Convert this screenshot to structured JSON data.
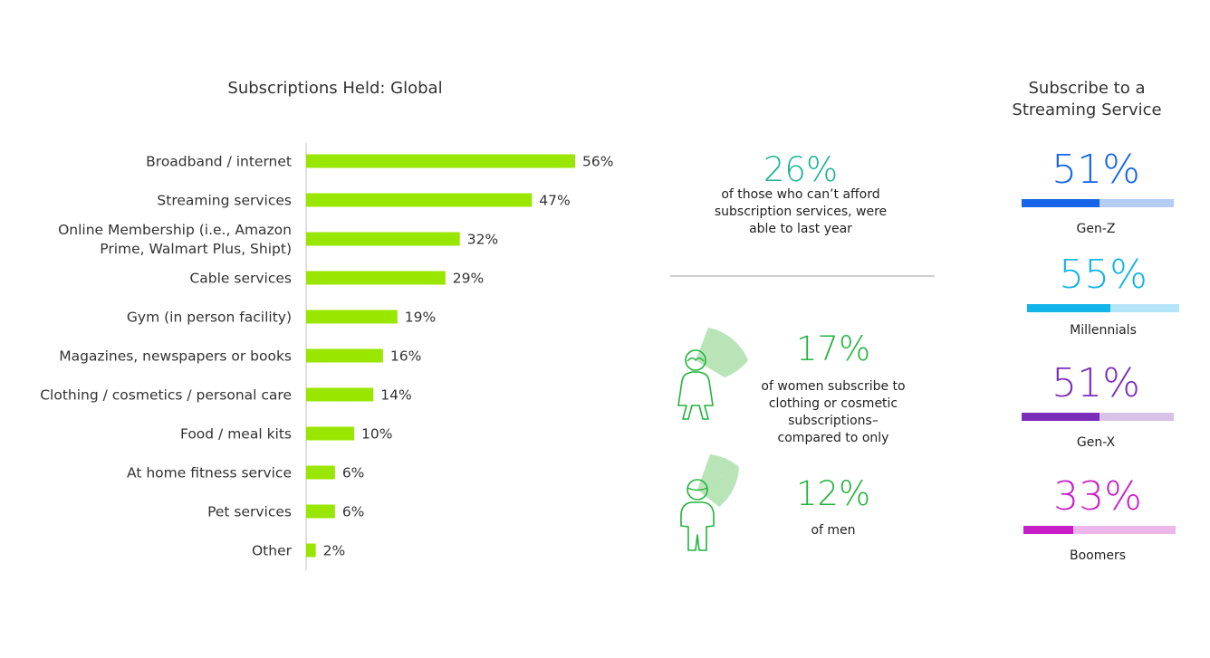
{
  "bar_chart": {
    "title": "Subscriptions Held: Global"
  },
  "chart_data": [
    {
      "type": "bar",
      "orientation": "horizontal",
      "title": "Subscriptions Held: Global",
      "categories": [
        [
          "Broadband / internet"
        ],
        [
          "Streaming services"
        ],
        [
          "Online Membership (i.e., Amazon",
          "Prime, Walmart Plus, Shipt)"
        ],
        [
          "Cable services"
        ],
        [
          "Gym (in person facility)"
        ],
        [
          "Magazines, newspapers or books"
        ],
        [
          "Clothing / cosmetics / personal care"
        ],
        [
          "Food / meal kits"
        ],
        [
          "At home fitness service"
        ],
        [
          "Pet services"
        ],
        [
          "Other"
        ]
      ],
      "values": [
        56,
        47,
        32,
        29,
        19,
        16,
        14,
        10,
        6,
        6,
        2
      ],
      "value_labels": [
        "56%",
        "47%",
        "32%",
        "29%",
        "19%",
        "16%",
        "14%",
        "10%",
        "6%",
        "6%",
        "2%"
      ],
      "unit": "%",
      "color": "#99e600",
      "xlim": [
        0,
        56
      ]
    },
    {
      "type": "bar",
      "title": "Subscribe to a Streaming Service",
      "categories": [
        "Gen-Z",
        "Millennials",
        "Gen-X",
        "Boomers"
      ],
      "values": [
        51,
        55,
        51,
        33
      ],
      "unit": "%"
    }
  ],
  "stats": {
    "afford": {
      "value": "26%",
      "text": [
        "of those who can’t afford",
        "subscription services, were",
        "able to last year"
      ],
      "color": "#1ab394"
    },
    "women": {
      "value": "17%",
      "text": [
        "of women subscribe to",
        "clothing or cosmetic",
        "subscriptions–",
        "compared to only"
      ],
      "color": "#21b33c"
    },
    "men": {
      "value": "12%",
      "text": [
        "of men"
      ],
      "color": "#21b33c"
    }
  },
  "generations": {
    "title": [
      "Subscribe to a",
      "Streaming Service"
    ],
    "items": [
      {
        "label": "Gen-Z",
        "value": "51%",
        "fraction": 0.51,
        "color": "#1664e8",
        "track": "#b3cdf5"
      },
      {
        "label": "Millennials",
        "value": "55%",
        "fraction": 0.55,
        "color": "#12b4ea",
        "track": "#b5e6f8"
      },
      {
        "label": "Gen-X",
        "value": "51%",
        "fraction": 0.51,
        "color": "#7a2dbb",
        "track": "#d9c2e8"
      },
      {
        "label": "Boomers",
        "value": "33%",
        "fraction": 0.33,
        "color": "#c81ec8",
        "track": "#ecb6ea"
      }
    ]
  },
  "icons": [
    "woman-icon",
    "man-icon",
    "pie-slice-icon"
  ]
}
